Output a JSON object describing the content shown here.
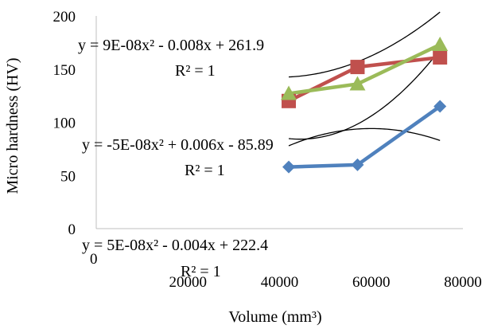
{
  "chart_data": {
    "type": "scatter",
    "title": "",
    "xlabel": "Volume (mm³)",
    "ylabel": "Micro hardness (HV)",
    "xlim": [
      0,
      80000
    ],
    "ylim": [
      0,
      200
    ],
    "x_ticks": [
      0,
      20000,
      40000,
      60000,
      80000
    ],
    "y_ticks": [
      0,
      50,
      100,
      150,
      200
    ],
    "x_tick_labels": [
      "0",
      "20000",
      "40000",
      "60000",
      "80000"
    ],
    "y_tick_labels": [
      "0",
      "50",
      "100",
      "150",
      "200"
    ],
    "grid": false,
    "legend": "none",
    "series": [
      {
        "color": "#4f81bd",
        "marker": "diamond",
        "x": [
          42000,
          57000,
          75000
        ],
        "y": [
          58,
          60,
          115
        ]
      },
      {
        "color": "#c0504d",
        "marker": "square",
        "x": [
          42000,
          57000,
          75000
        ],
        "y": [
          120,
          152,
          161
        ]
      },
      {
        "color": "#9bbb59",
        "marker": "triangle",
        "x": [
          42000,
          57000,
          75000
        ],
        "y": [
          127,
          136,
          173
        ]
      }
    ],
    "trendlines": [
      {
        "a": -5e-08,
        "b": 0.006,
        "c": -85.89,
        "x_range": [
          42000,
          75000
        ]
      },
      {
        "a": 9e-08,
        "b": -0.008,
        "c": 261.9,
        "x_range": [
          42000,
          75000
        ]
      },
      {
        "a": 5e-08,
        "b": -0.004,
        "c": 222.4,
        "x_range": [
          42000,
          75000
        ]
      }
    ],
    "annotations": [
      {
        "equation": "y = 9E-08x² - 0.008x + 261.9",
        "r2": "R² = 1"
      },
      {
        "equation": "y = -5E-08x² + 0.006x - 85.89",
        "r2": "R² = 1"
      },
      {
        "equation": "y = 5E-08x² - 0.004x + 222.4",
        "r2": "R² = 1"
      }
    ]
  }
}
